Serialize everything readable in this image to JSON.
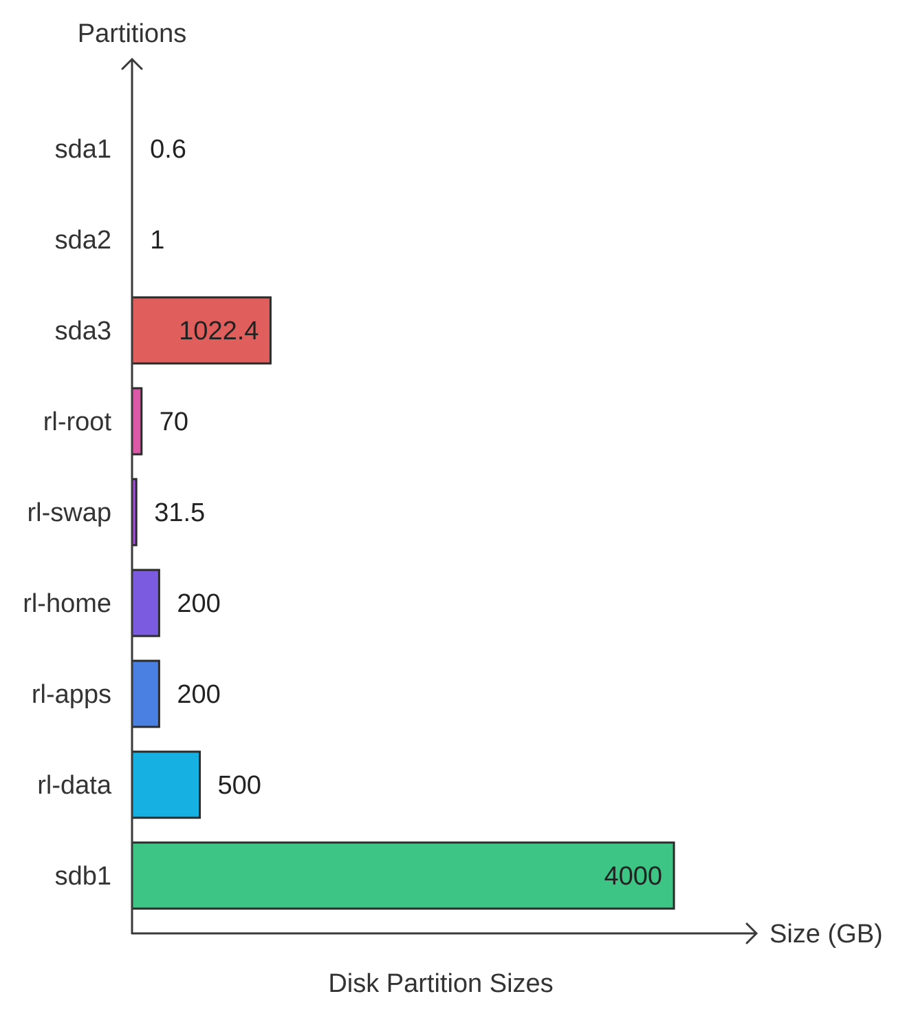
{
  "chart_data": {
    "type": "bar",
    "orientation": "horizontal",
    "title": "Disk Partition Sizes",
    "xlabel": "Size (GB)",
    "ylabel": "Partitions",
    "categories": [
      "sda1",
      "sda2",
      "sda3",
      "rl-root",
      "rl-swap",
      "rl-home",
      "rl-apps",
      "rl-data",
      "sdb1"
    ],
    "values": [
      0.6,
      1,
      1022.4,
      70,
      31.5,
      200,
      200,
      500,
      4000
    ],
    "value_labels": [
      "0.6",
      "1",
      "1022.4",
      "70",
      "31.5",
      "200",
      "200",
      "500",
      "4000"
    ],
    "colors": [
      "#d9d9d9",
      "#d9d9d9",
      "#e05f5d",
      "#de58a8",
      "#a04fd6",
      "#7b5ce0",
      "#4a80e2",
      "#17b0e2",
      "#3cc584"
    ],
    "xlim": [
      0,
      4000
    ],
    "grid": false,
    "legend": "none"
  }
}
